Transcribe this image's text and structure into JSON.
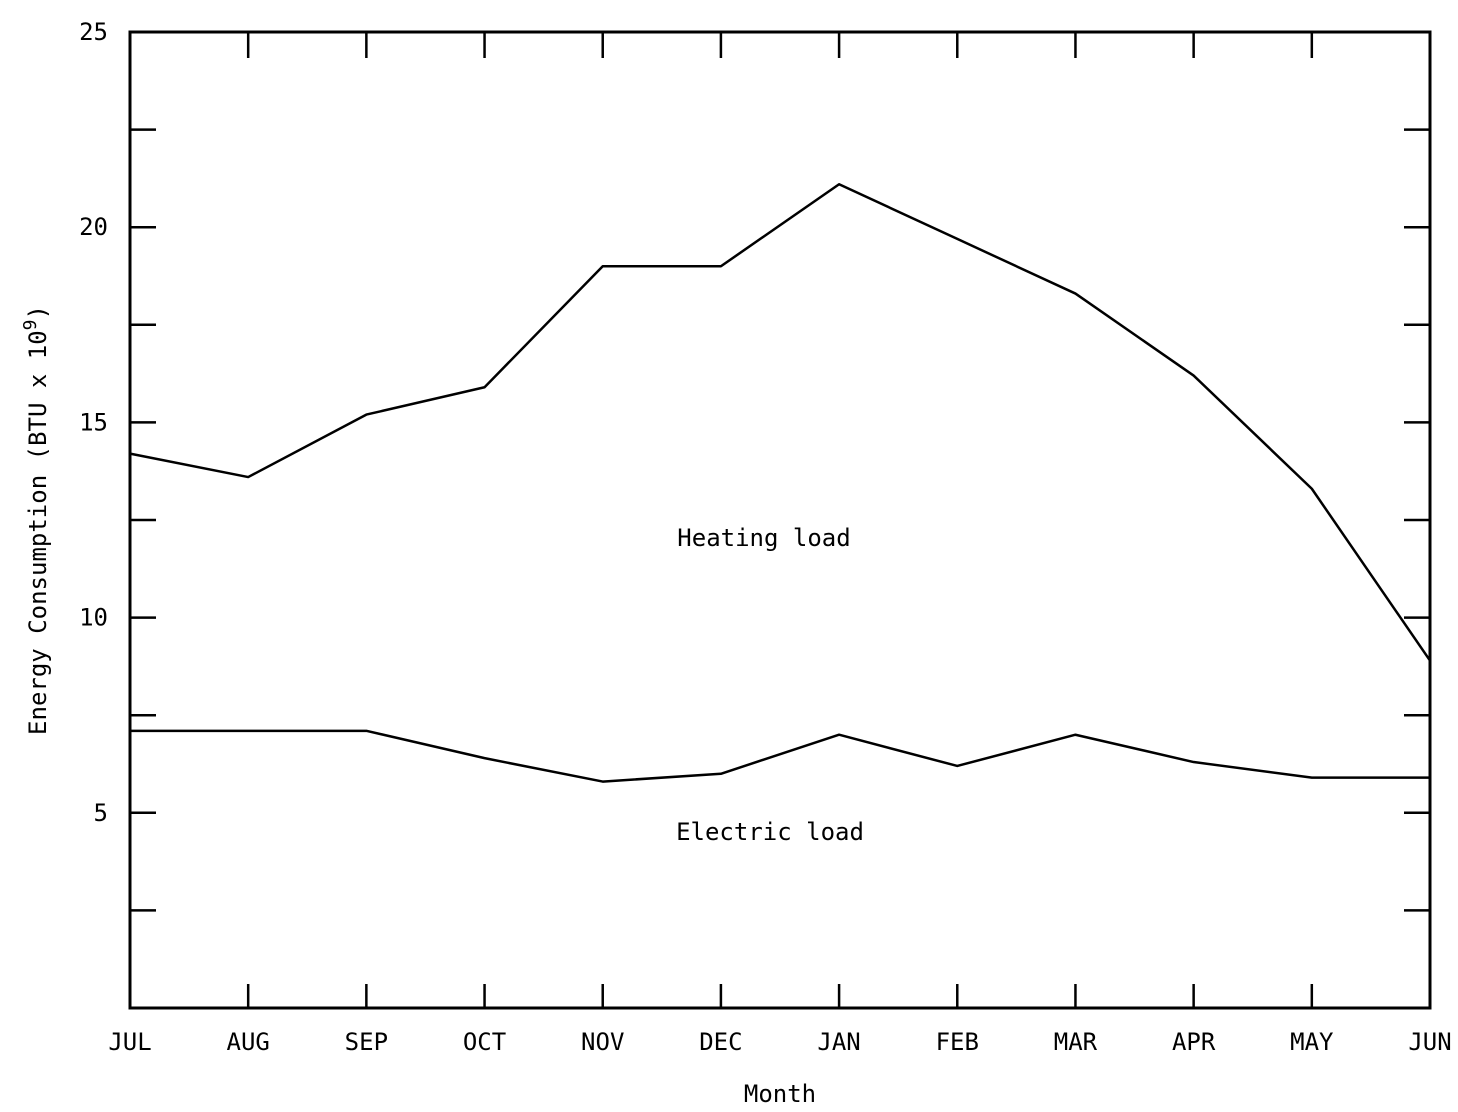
{
  "chart_data": {
    "type": "line",
    "title": "",
    "xlabel": "Month",
    "ylabel": "Energy Consumption (BTU x 10",
    "ylabel_superscript": "9",
    "ylabel_close": ")",
    "categories": [
      "JUL",
      "AUG",
      "SEP",
      "OCT",
      "NOV",
      "DEC",
      "JAN",
      "FEB",
      "MAR",
      "APR",
      "MAY",
      "JUN"
    ],
    "ylim": [
      0,
      25
    ],
    "yticks": [
      5,
      10,
      15,
      20,
      25
    ],
    "ytick_labels": [
      "5",
      "10",
      "15",
      "20",
      "25"
    ],
    "grid": false,
    "series": [
      {
        "annotation": "Heating load",
        "values": [
          14.2,
          13.6,
          15.2,
          15.9,
          19.0,
          19.0,
          21.1,
          19.7,
          18.3,
          16.2,
          13.3,
          8.9
        ]
      },
      {
        "annotation": "Electric load",
        "values": [
          7.1,
          7.1,
          7.1,
          6.4,
          5.8,
          6.0,
          7.0,
          6.2,
          7.0,
          6.3,
          5.9,
          5.9
        ]
      }
    ]
  }
}
